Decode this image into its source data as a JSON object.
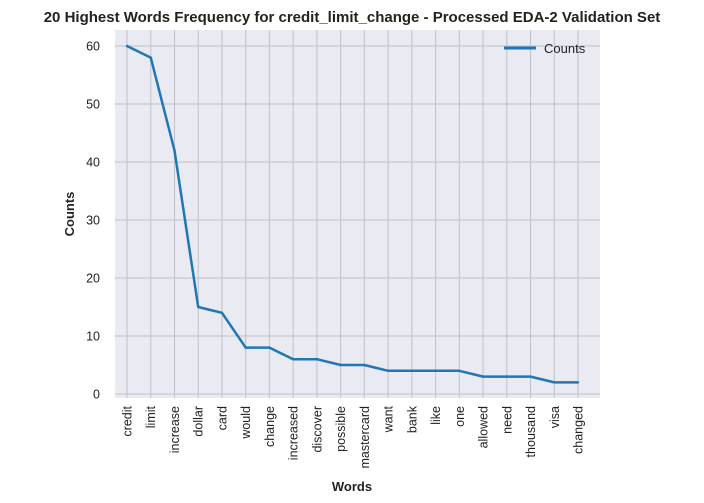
{
  "chart_data": {
    "type": "line",
    "title": "20 Highest Words Frequency for credit_limit_change - Processed EDA-2 Validation Set",
    "xlabel": "Words",
    "ylabel": "Counts",
    "categories": [
      "credit",
      "limit",
      "increase",
      "dollar",
      "card",
      "would",
      "change",
      "increased",
      "discover",
      "possible",
      "mastercard",
      "want",
      "bank",
      "like",
      "one",
      "allowed",
      "need",
      "thousand",
      "visa",
      "changed"
    ],
    "series": [
      {
        "name": "Counts",
        "values": [
          60,
          58,
          42,
          15,
          14,
          8,
          8,
          6,
          6,
          5,
          5,
          4,
          4,
          4,
          4,
          3,
          3,
          3,
          2,
          2
        ],
        "color": "#1f77b4"
      }
    ],
    "yticks": [
      0,
      10,
      20,
      30,
      40,
      50,
      60
    ],
    "ylim": [
      -1.5,
      63
    ],
    "grid": true,
    "legend_position": "upper-right",
    "colors": {
      "plot_background": "#eaeaf2",
      "grid": "#c0c0c8",
      "line": "#1f77b4"
    }
  }
}
